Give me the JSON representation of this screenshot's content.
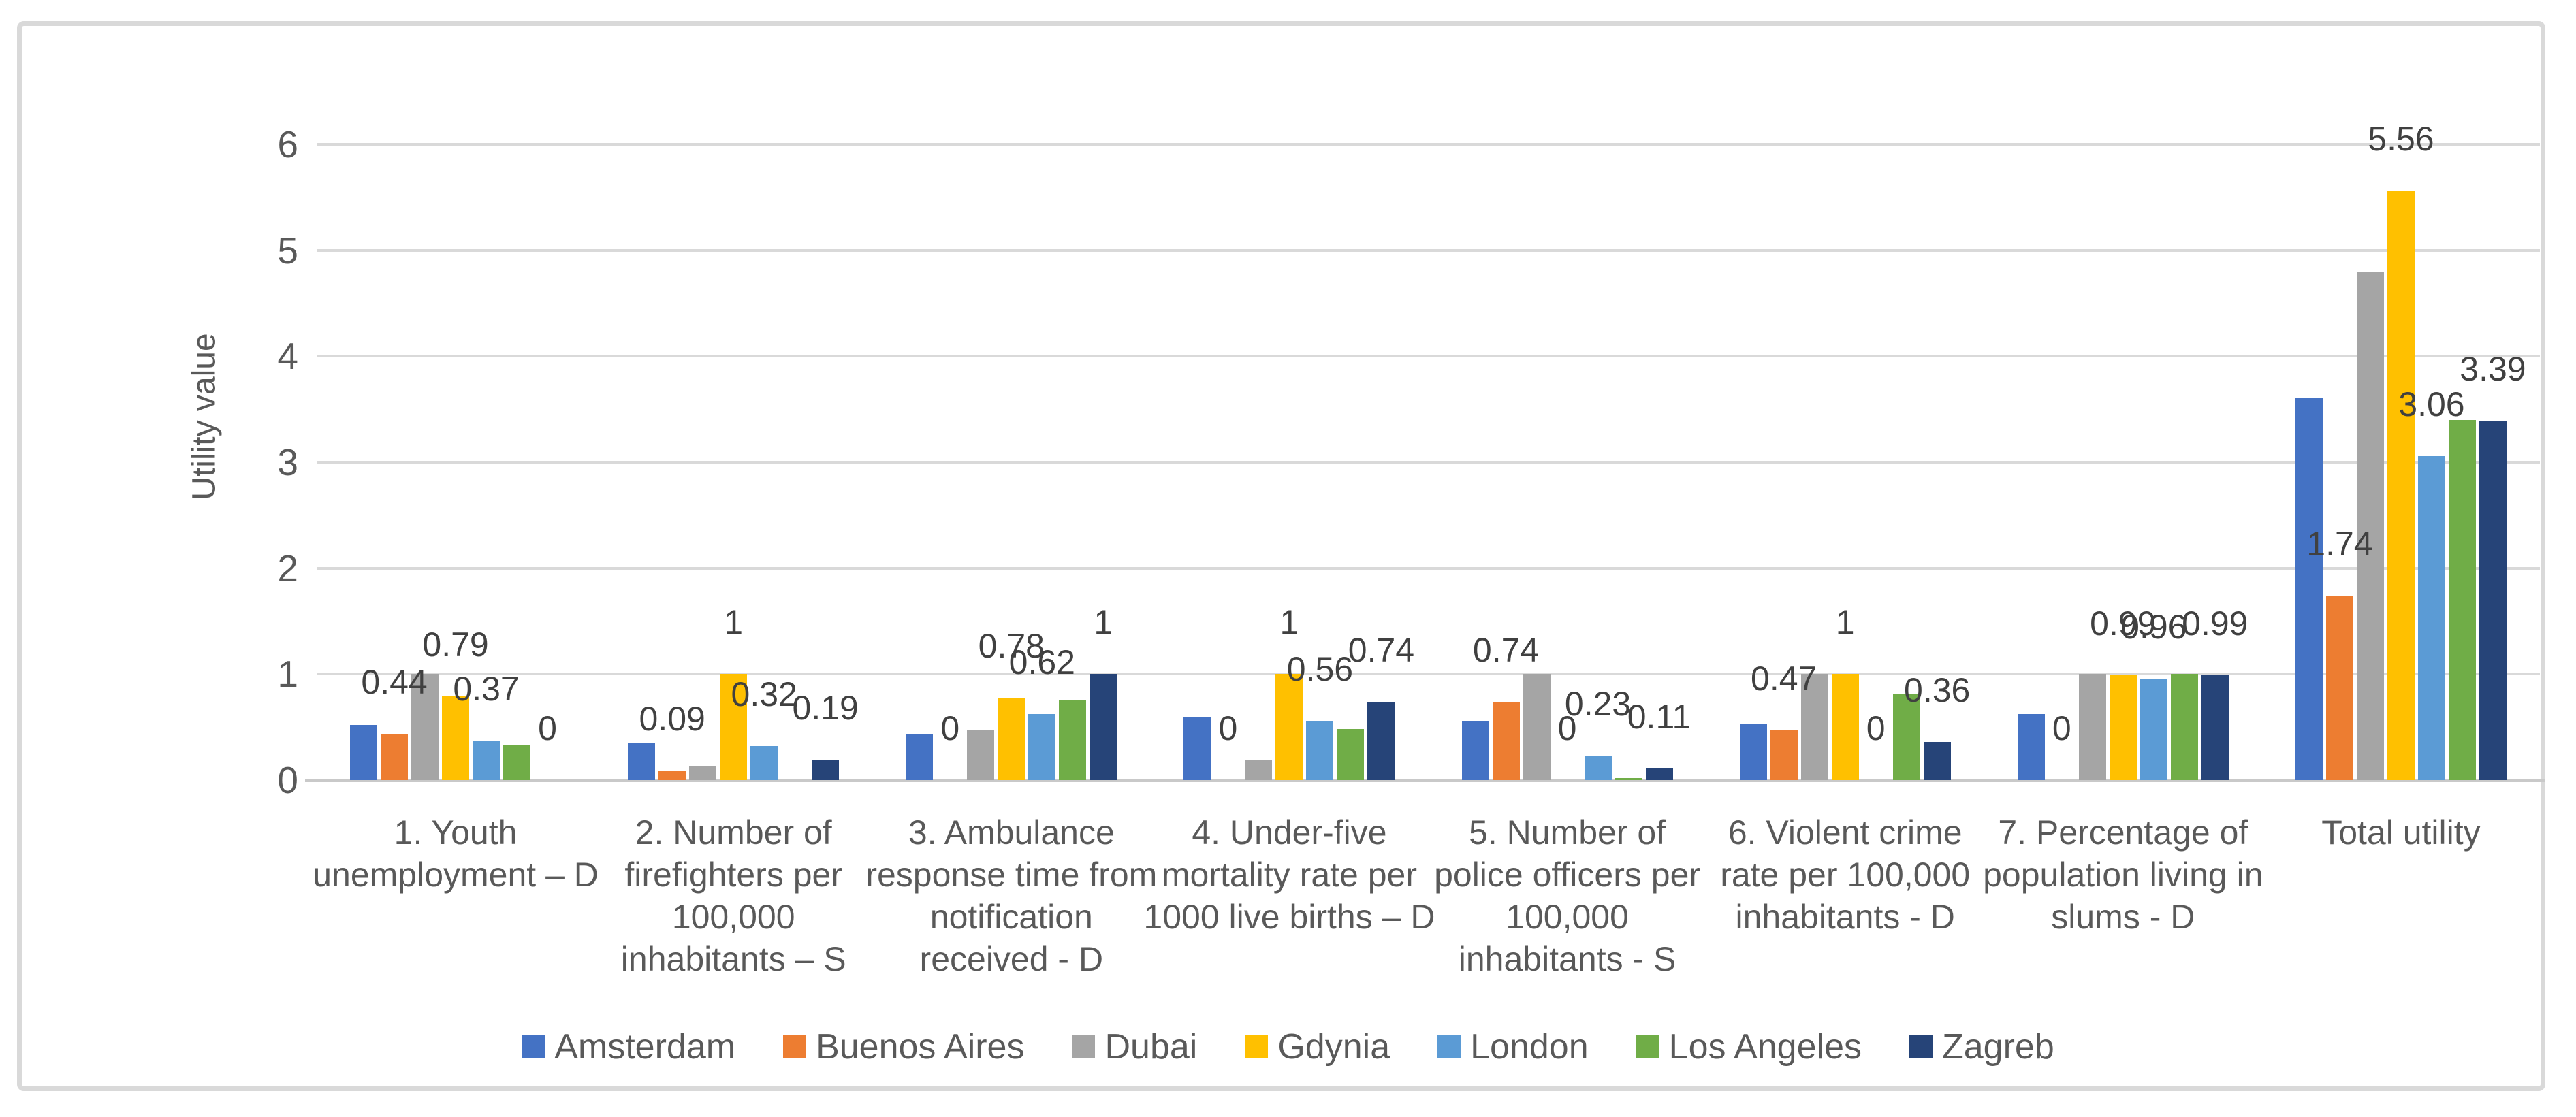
{
  "chart_data": {
    "type": "bar",
    "title": "",
    "ylabel": "Utility value",
    "xlabel": "",
    "ylim": [
      0,
      6
    ],
    "yticks": [
      0,
      1,
      2,
      3,
      4,
      5,
      6
    ],
    "grid": true,
    "legend_position": "bottom",
    "categories": [
      "1. Youth unemployment – D",
      "2. Number of firefighters per 100,000 inhabitants – S",
      "3. Ambulance response time from notification received - D",
      "4.  Under-five mortality  rate per 1000 live births – D",
      "5. Number of police officers per 100,000 inhabitants - S",
      "6. Violent crime rate per 100,000 inhabitants - D",
      "7. Percentage of population living in slums - D",
      "Total utility"
    ],
    "series": [
      {
        "name": "Amsterdam",
        "color": "#4472C4",
        "values": [
          0.52,
          0.35,
          0.43,
          0.6,
          0.56,
          0.53,
          0.62,
          3.61
        ],
        "data_labels": null
      },
      {
        "name": "Buenos Aires",
        "color": "#ED7D31",
        "values": [
          0.44,
          0.09,
          0,
          0,
          0.74,
          0.47,
          0,
          1.74
        ],
        "data_labels": [
          "0.44",
          "0.09",
          "0",
          "0",
          "0.74",
          "0.47",
          "0",
          "1.74"
        ]
      },
      {
        "name": "Dubai",
        "color": "#A5A5A5",
        "values": [
          1,
          0.13,
          0.47,
          0.19,
          1,
          1,
          1,
          4.79
        ],
        "data_labels": null
      },
      {
        "name": "Gdynia",
        "color": "#FFC000",
        "values": [
          0.79,
          1,
          0.78,
          1,
          0,
          1,
          0.99,
          5.56
        ],
        "data_labels": [
          "0.79",
          "1",
          "0.78",
          "1",
          "0",
          "1",
          "0.99",
          "5.56"
        ]
      },
      {
        "name": "London",
        "color": "#5B9BD5",
        "values": [
          0.37,
          0.32,
          0.62,
          0.56,
          0.23,
          0,
          0.96,
          3.06
        ],
        "data_labels": [
          "0.37",
          "0.32",
          "0.62",
          "0.56",
          "0.23",
          "0",
          "0.96",
          "3.06"
        ]
      },
      {
        "name": "Los Angeles",
        "color": "#70AD47",
        "values": [
          0.33,
          0,
          0.76,
          0.48,
          0.02,
          0.81,
          1,
          3.4
        ],
        "data_labels": null
      },
      {
        "name": "Zagreb",
        "color": "#264478",
        "values": [
          0,
          0.19,
          1,
          0.74,
          0.11,
          0.36,
          0.99,
          3.39
        ],
        "data_labels": [
          "0",
          "0.19",
          "1",
          "0.74",
          "0.11",
          "0.36",
          "0.99",
          "3.39"
        ]
      }
    ],
    "style": {
      "background": "#FFFFFF",
      "chart_border_color": "#D9D9D9",
      "gridline_color": "#D9D9D9",
      "axis_line_color": "#C9C9C9",
      "axis_text_color": "#595959",
      "data_label_color": "#404040"
    }
  }
}
